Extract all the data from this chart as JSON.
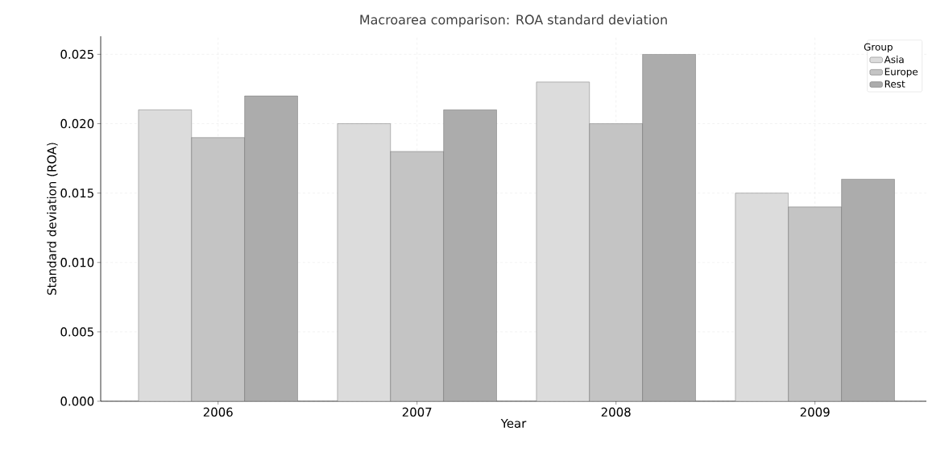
{
  "chart_data": {
    "type": "bar",
    "title": "Macroarea comparison: ROA standard deviation",
    "xlabel": "Year",
    "ylabel": "Standard deviation (ROA)",
    "legend_title": "Group",
    "categories": [
      "2006",
      "2007",
      "2008",
      "2009"
    ],
    "series": [
      {
        "name": "Asia",
        "color": "#dcdcdc",
        "values": [
          0.021,
          0.02,
          0.023,
          0.015
        ]
      },
      {
        "name": "Europe",
        "color": "#c4c4c4",
        "values": [
          0.019,
          0.018,
          0.02,
          0.014
        ]
      },
      {
        "name": "Rest",
        "color": "#acacac",
        "values": [
          0.022,
          0.021,
          0.025,
          0.016
        ]
      }
    ],
    "ylim": [
      0,
      0.0263
    ],
    "yticks": [
      {
        "value": 0,
        "label": "0.000"
      },
      {
        "value": 0.005,
        "label": "0.005"
      },
      {
        "value": 0.01,
        "label": "0.010"
      },
      {
        "value": 0.015,
        "label": "0.015"
      },
      {
        "value": 0.02,
        "label": "0.020"
      },
      {
        "value": 0.025,
        "label": "0.025"
      }
    ],
    "grid": true,
    "legend": "top right"
  }
}
